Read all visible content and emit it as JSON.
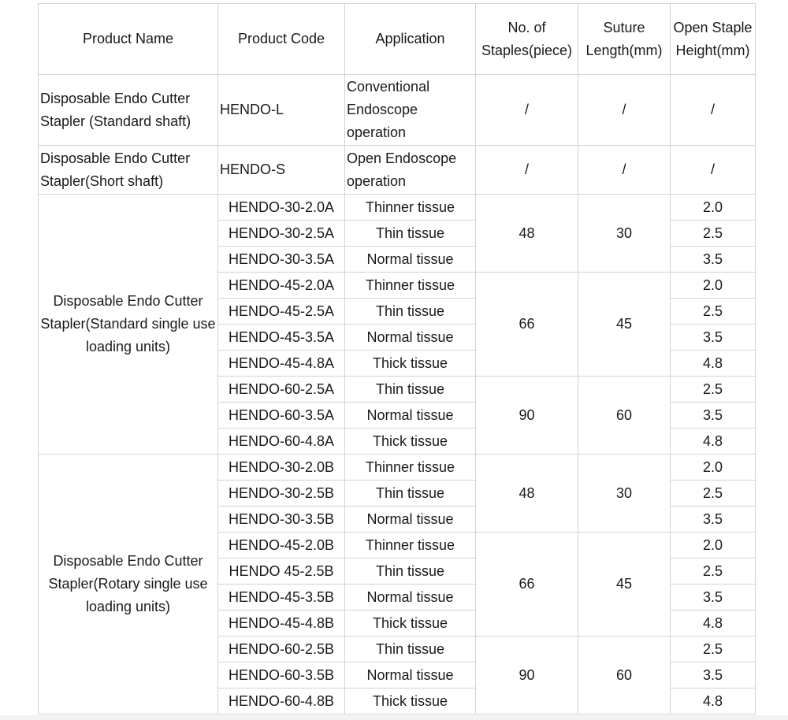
{
  "headers": {
    "product_name": "Product Name",
    "product_code": "Product Code",
    "application": "Application",
    "staples": "No. of Staples(piece)",
    "length": "Suture Length(mm)",
    "height": "Open Staple Height(mm)"
  },
  "simple_rows": [
    {
      "name": "Disposable Endo Cutter Stapler (Standard shaft)",
      "code": "HENDO-L",
      "application": "Conventional Endoscope operation",
      "staples": "/",
      "length": "/",
      "height": "/"
    },
    {
      "name": "Disposable Endo Cutter Stapler(Short shaft)",
      "code": "HENDO-S",
      "application": "Open Endoscope operation",
      "staples": "/",
      "length": "/",
      "height": "/"
    }
  ],
  "groups": [
    {
      "name": "Disposable Endo Cutter Stapler(Standard single use loading units)",
      "blocks": [
        {
          "staples": "48",
          "length": "30",
          "items": [
            {
              "code": "HENDO-30-2.0A",
              "application": "Thinner tissue",
              "height": "2.0"
            },
            {
              "code": "HENDO-30-2.5A",
              "application": "Thin tissue",
              "height": "2.5"
            },
            {
              "code": "HENDO-30-3.5A",
              "application": "Normal tissue",
              "height": "3.5"
            }
          ]
        },
        {
          "staples": "66",
          "length": "45",
          "items": [
            {
              "code": "HENDO-45-2.0A",
              "application": "Thinner tissue",
              "height": "2.0"
            },
            {
              "code": "HENDO-45-2.5A",
              "application": "Thin tissue",
              "height": "2.5"
            },
            {
              "code": "HENDO-45-3.5A",
              "application": "Normal tissue",
              "height": "3.5"
            },
            {
              "code": "HENDO-45-4.8A",
              "application": "Thick tissue",
              "height": "4.8"
            }
          ]
        },
        {
          "staples": "90",
          "length": "60",
          "items": [
            {
              "code": "HENDO-60-2.5A",
              "application": "Thin tissue",
              "height": "2.5"
            },
            {
              "code": "HENDO-60-3.5A",
              "application": "Normal tissue",
              "height": "3.5"
            },
            {
              "code": "HENDO-60-4.8A",
              "application": "Thick tissue",
              "height": "4.8"
            }
          ]
        }
      ]
    },
    {
      "name": "Disposable Endo Cutter Stapler(Rotary single use loading units)",
      "blocks": [
        {
          "staples": "48",
          "length": "30",
          "items": [
            {
              "code": "HENDO-30-2.0B",
              "application": "Thinner tissue",
              "height": "2.0"
            },
            {
              "code": "HENDO-30-2.5B",
              "application": "Thin tissue",
              "height": "2.5"
            },
            {
              "code": "HENDO-30-3.5B",
              "application": "Normal tissue",
              "height": "3.5"
            }
          ]
        },
        {
          "staples": "66",
          "length": "45",
          "items": [
            {
              "code": "HENDO-45-2.0B",
              "application": "Thinner tissue",
              "height": "2.0"
            },
            {
              "code": "HENDO 45-2.5B",
              "application": "Thin tissue",
              "height": "2.5"
            },
            {
              "code": "HENDO-45-3.5B",
              "application": "Normal tissue",
              "height": "3.5"
            },
            {
              "code": "HENDO-45-4.8B",
              "application": "Thick tissue",
              "height": "4.8"
            }
          ]
        },
        {
          "staples": "90",
          "length": "60",
          "items": [
            {
              "code": "HENDO-60-2.5B",
              "application": "Thin tissue",
              "height": "2.5"
            },
            {
              "code": "HENDO-60-3.5B",
              "application": "Normal tissue",
              "height": "3.5"
            },
            {
              "code": "HENDO-60-4.8B",
              "application": "Thick tissue",
              "height": "4.8"
            }
          ]
        }
      ]
    }
  ]
}
